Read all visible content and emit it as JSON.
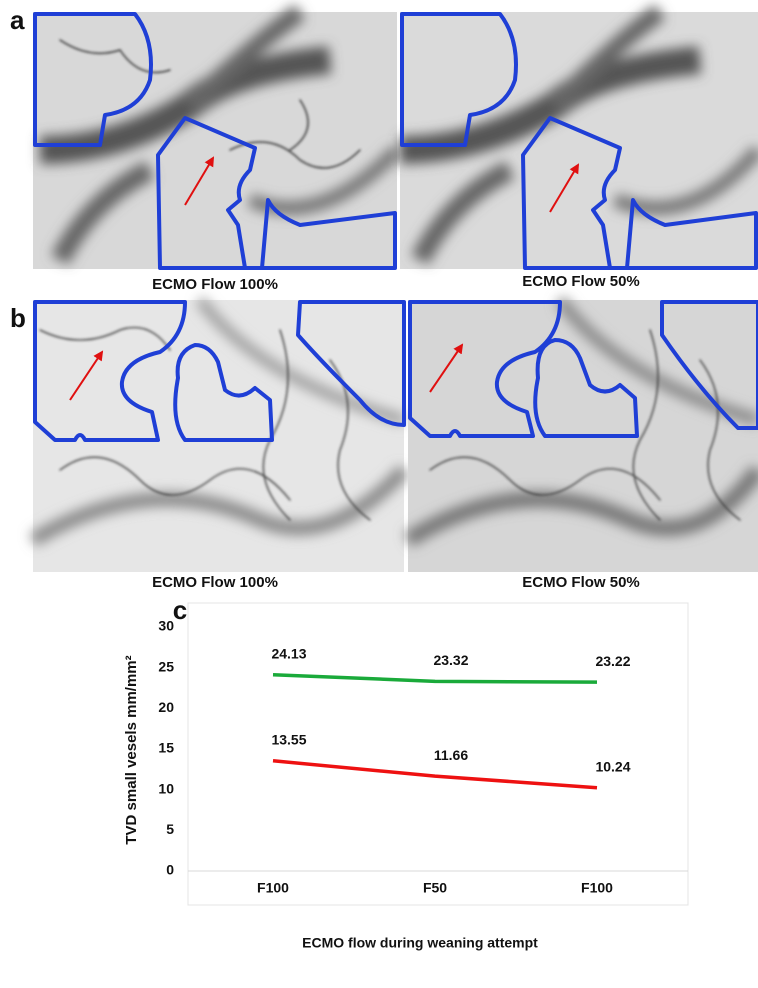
{
  "panels": [
    {
      "label": "a",
      "captions": [
        "ECMO Flow 100%",
        "ECMO Flow 50%"
      ]
    },
    {
      "label": "b",
      "captions": [
        "ECMO Flow 100%",
        "ECMO Flow 50%"
      ]
    }
  ],
  "chart_data": {
    "type": "line",
    "label": "c",
    "xlabel": "ECMO flow during weaning attempt",
    "ylabel": "TVD small vesels mm/mm²",
    "categories": [
      "F100",
      "F50",
      "F100"
    ],
    "series": [
      {
        "color": "#1aaa3a",
        "values": [
          24.13,
          23.32,
          23.22
        ]
      },
      {
        "color": "#ee1111",
        "values": [
          13.55,
          11.66,
          10.24
        ]
      }
    ],
    "ylim": [
      0,
      30
    ],
    "yticks": [
      0,
      5,
      10,
      15,
      20,
      25,
      30
    ],
    "grid": false
  }
}
